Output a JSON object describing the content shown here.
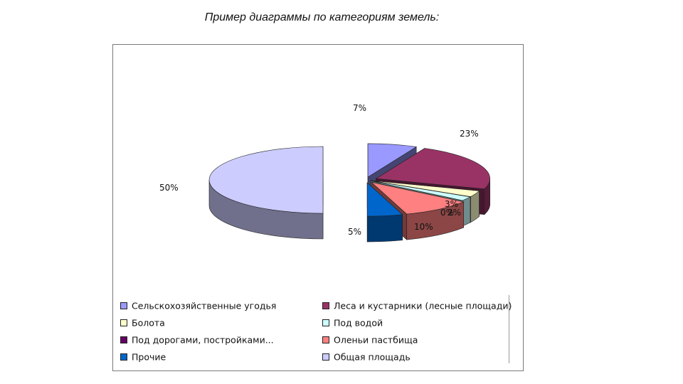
{
  "page": {
    "title": "Пример диаграммы по категориям земель:"
  },
  "chart_data": {
    "type": "pie",
    "title": "",
    "subtitle": "",
    "three_d": true,
    "exploded": true,
    "legend_position": "bottom",
    "slices": [
      {
        "name": "Сельскохозяйственные угодья",
        "value": 7,
        "label": "7%",
        "color": "#9999ff"
      },
      {
        "name": "Леса и кустарники (лесные площади)",
        "value": 23,
        "label": "23%",
        "color": "#993366"
      },
      {
        "name": "Болота",
        "value": 3,
        "label": "3%",
        "color": "#ffffcc"
      },
      {
        "name": "Под водой",
        "value": 2,
        "label": "2%",
        "color": "#ccffff"
      },
      {
        "name": "Под дорогами, постройками...",
        "value": 0,
        "label": "0%",
        "color": "#660066"
      },
      {
        "name": "Оленьи пастбища",
        "value": 10,
        "label": "10%",
        "color": "#ff8080"
      },
      {
        "name": "Прочие",
        "value": 5,
        "label": "5%",
        "color": "#0066cc"
      },
      {
        "name": "Общая площадь",
        "value": 50,
        "label": "50%",
        "color": "#ccccff"
      }
    ]
  }
}
